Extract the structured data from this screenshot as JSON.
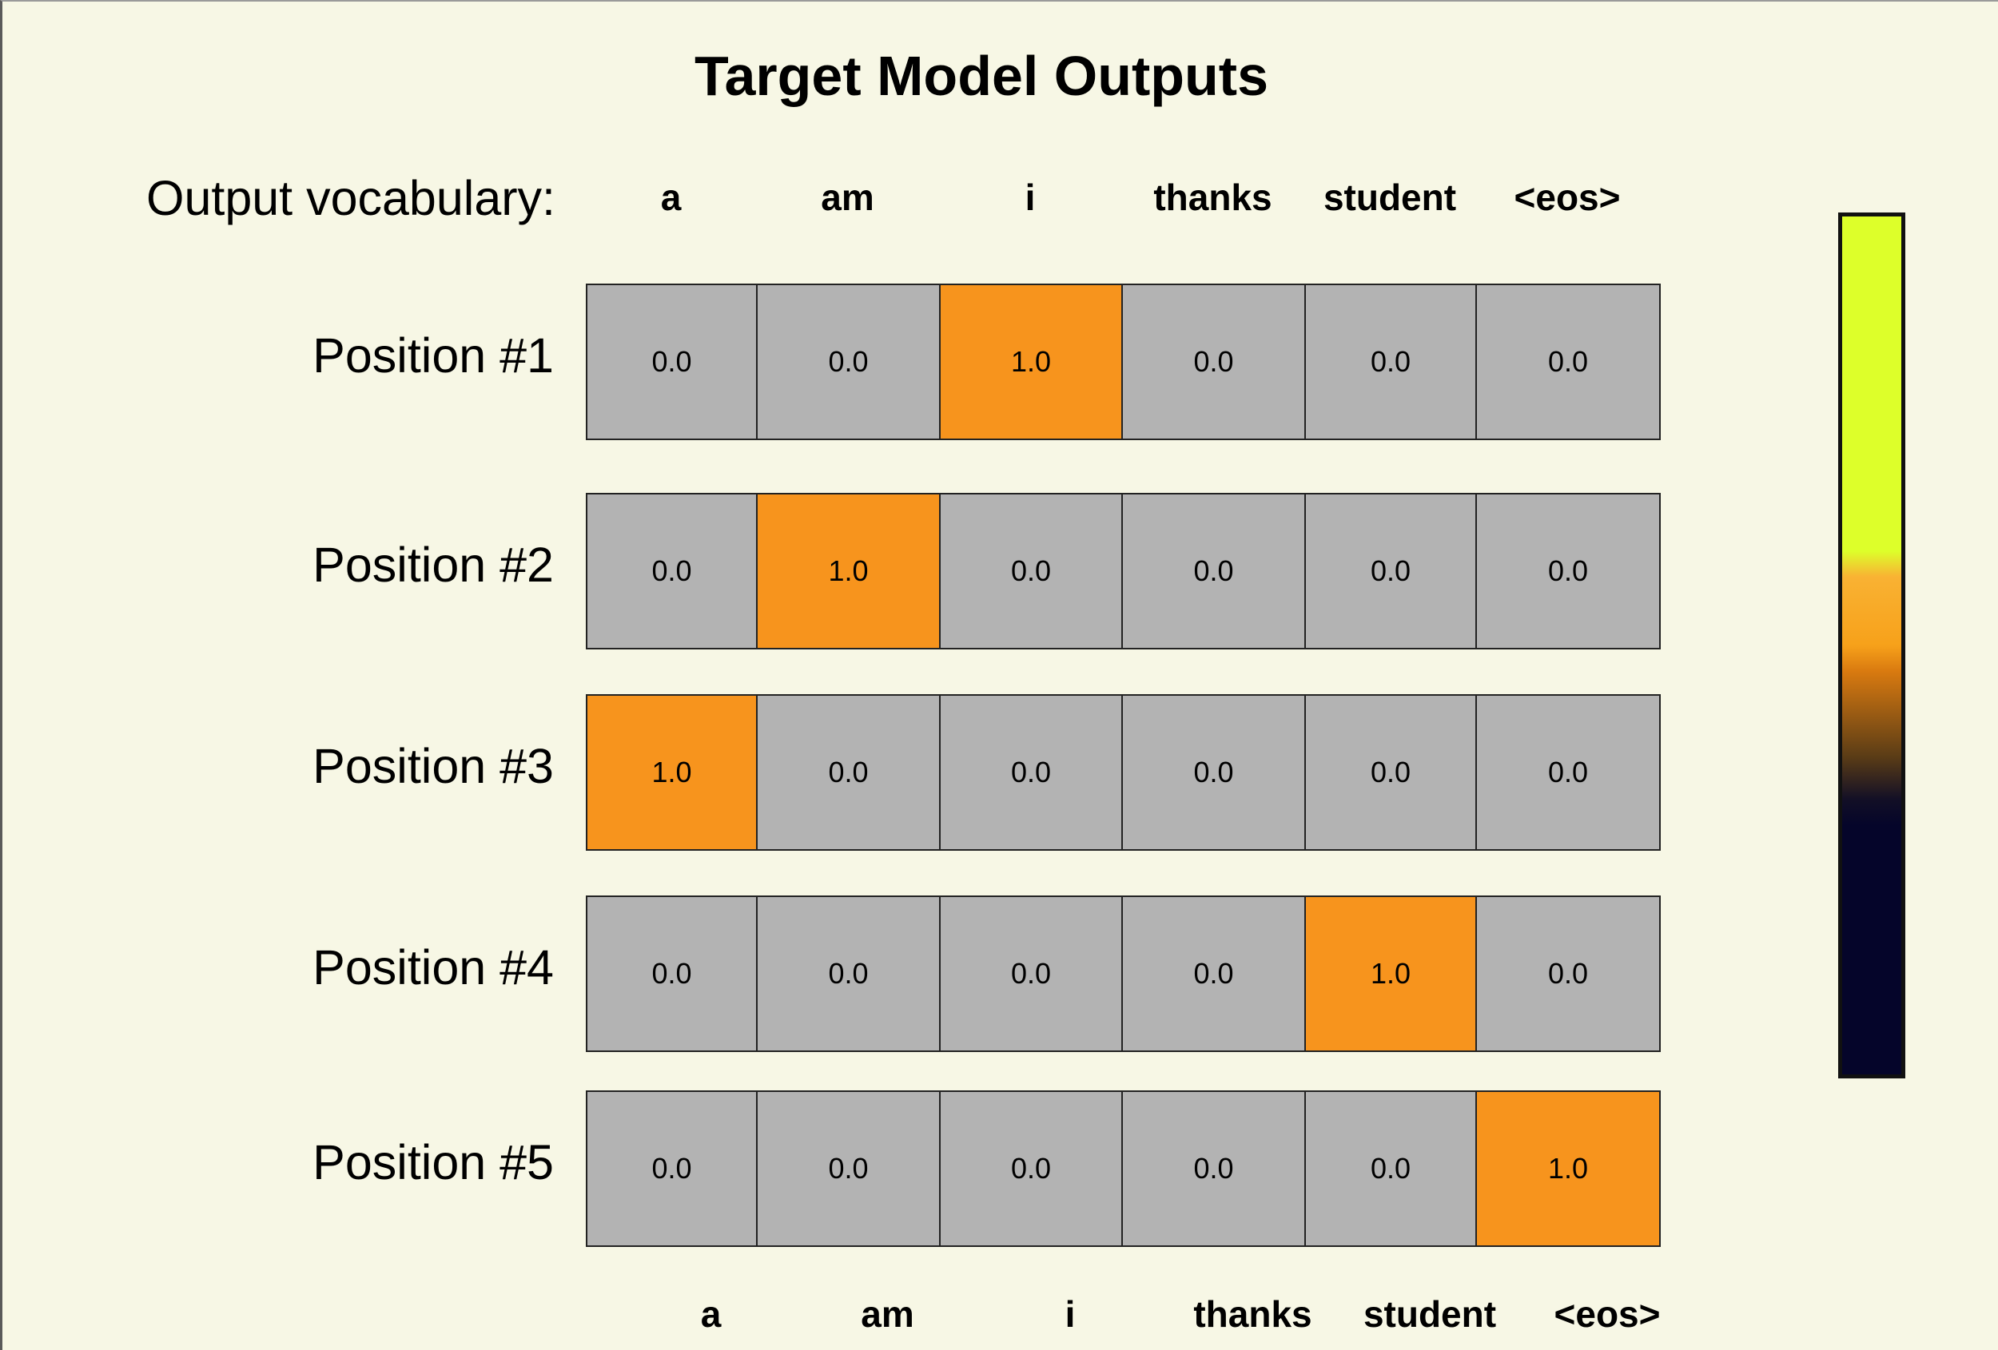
{
  "title": "Target Model Outputs",
  "vocab_label": "Output vocabulary:",
  "vocabulary": [
    "a",
    "am",
    "i",
    "thanks",
    "student",
    "<eos>"
  ],
  "rows": [
    {
      "label": "Position #1",
      "values": [
        "0.0",
        "0.0",
        "1.0",
        "0.0",
        "0.0",
        "0.0"
      ]
    },
    {
      "label": "Position #2",
      "values": [
        "0.0",
        "1.0",
        "0.0",
        "0.0",
        "0.0",
        "0.0"
      ]
    },
    {
      "label": "Position #3",
      "values": [
        "1.0",
        "0.0",
        "0.0",
        "0.0",
        "0.0",
        "0.0"
      ]
    },
    {
      "label": "Position #4",
      "values": [
        "0.0",
        "0.0",
        "0.0",
        "0.0",
        "1.0",
        "0.0"
      ]
    },
    {
      "label": "Position #5",
      "values": [
        "0.0",
        "0.0",
        "0.0",
        "0.0",
        "0.0",
        "1.0"
      ]
    }
  ],
  "colors": {
    "background": "#f7f7e5",
    "cell": "#b3b3b3",
    "highlight": "#f7941d",
    "colorbar_stops": [
      "#ddff2a",
      "#f7a11a",
      "#5a3c16",
      "#05052a"
    ]
  }
}
